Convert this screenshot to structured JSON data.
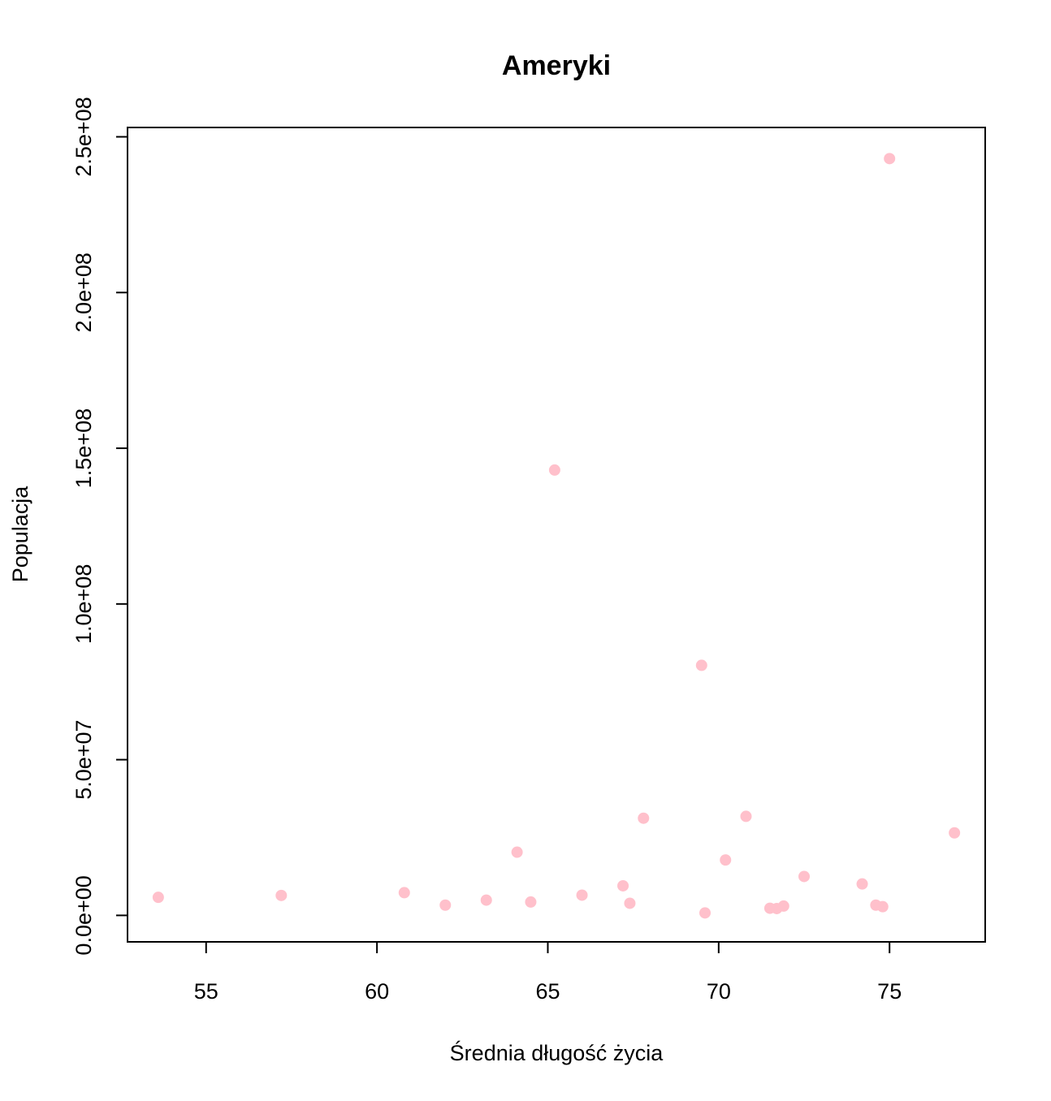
{
  "chart_data": {
    "type": "scatter",
    "title": "Ameryki",
    "xlabel": "Średnia długość życia",
    "ylabel": "Populacja",
    "xlim": [
      52.7,
      77.8
    ],
    "ylim": [
      -8500000,
      253000000
    ],
    "xticks": [
      55,
      60,
      65,
      70,
      75
    ],
    "xtick_labels": [
      "55",
      "60",
      "65",
      "70",
      "75"
    ],
    "yticks": [
      0,
      50000000,
      100000000,
      150000000,
      200000000,
      250000000
    ],
    "ytick_labels": [
      "0.0e+00",
      "5.0e+07",
      "1.0e+08",
      "1.5e+08",
      "2.0e+08",
      "2.5e+08"
    ],
    "point_color": "#FFC0CB",
    "grid": false,
    "points": [
      {
        "x": 53.6,
        "y": 5800000
      },
      {
        "x": 57.2,
        "y": 6400000
      },
      {
        "x": 60.8,
        "y": 7300000
      },
      {
        "x": 62.0,
        "y": 3300000
      },
      {
        "x": 63.2,
        "y": 4900000
      },
      {
        "x": 64.1,
        "y": 20300000
      },
      {
        "x": 64.5,
        "y": 4300000
      },
      {
        "x": 65.2,
        "y": 143000000
      },
      {
        "x": 66.0,
        "y": 6500000
      },
      {
        "x": 67.2,
        "y": 9500000
      },
      {
        "x": 67.4,
        "y": 3900000
      },
      {
        "x": 67.8,
        "y": 31200000
      },
      {
        "x": 69.5,
        "y": 80300000
      },
      {
        "x": 69.6,
        "y": 800000
      },
      {
        "x": 70.2,
        "y": 17800000
      },
      {
        "x": 70.8,
        "y": 31800000
      },
      {
        "x": 71.5,
        "y": 2300000
      },
      {
        "x": 71.7,
        "y": 2200000
      },
      {
        "x": 71.9,
        "y": 3000000
      },
      {
        "x": 72.5,
        "y": 12500000
      },
      {
        "x": 74.2,
        "y": 10100000
      },
      {
        "x": 74.6,
        "y": 3300000
      },
      {
        "x": 74.8,
        "y": 2800000
      },
      {
        "x": 75.0,
        "y": 243000000
      },
      {
        "x": 76.9,
        "y": 26500000
      }
    ]
  }
}
